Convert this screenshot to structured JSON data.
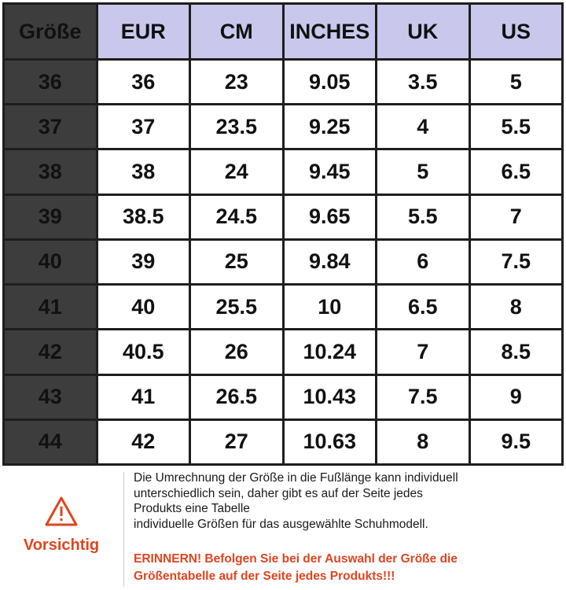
{
  "table": {
    "corner_label": "Größe",
    "columns": [
      "EUR",
      "CM",
      "INCHES",
      "UK",
      "US"
    ],
    "rows": [
      {
        "size": "36",
        "values": [
          "36",
          "23",
          "9.05",
          "3.5",
          "5"
        ]
      },
      {
        "size": "37",
        "values": [
          "37",
          "23.5",
          "9.25",
          "4",
          "5.5"
        ]
      },
      {
        "size": "38",
        "values": [
          "38",
          "24",
          "9.45",
          "5",
          "6.5"
        ]
      },
      {
        "size": "39",
        "values": [
          "38.5",
          "24.5",
          "9.65",
          "5.5",
          "7"
        ]
      },
      {
        "size": "40",
        "values": [
          "39",
          "25",
          "9.84",
          "6",
          "7.5"
        ]
      },
      {
        "size": "41",
        "values": [
          "40",
          "25.5",
          "10",
          "6.5",
          "8"
        ]
      },
      {
        "size": "42",
        "values": [
          "40.5",
          "26",
          "10.24",
          "7",
          "8.5"
        ]
      },
      {
        "size": "43",
        "values": [
          "41",
          "26.5",
          "10.43",
          "7.5",
          "9"
        ]
      },
      {
        "size": "44",
        "values": [
          "42",
          "27",
          "10.63",
          "8",
          "9.5"
        ]
      }
    ]
  },
  "warning": {
    "icon": "warning-triangle-icon",
    "label": "Vorsichtig",
    "color": "#e0451f"
  },
  "notice": {
    "lines": [
      "Die Umrechnung der Größe in die Fußlänge kann individuell",
      "unterschiedlich sein, daher gibt es auf der Seite jedes",
      "Produkts eine Tabelle",
      "individuelle Größen für das ausgewählte Schuhmodell."
    ],
    "reminder_lines": [
      "ERINNERN! Befolgen Sie bei der Auswahl der Größe die",
      "Größentabelle auf der Seite jedes Produkts!!!"
    ]
  },
  "colors": {
    "header_dark": "#3d3d3d",
    "header_light": "#c9c8ec",
    "grid": "#1e1e1e",
    "accent": "#e0451f"
  }
}
